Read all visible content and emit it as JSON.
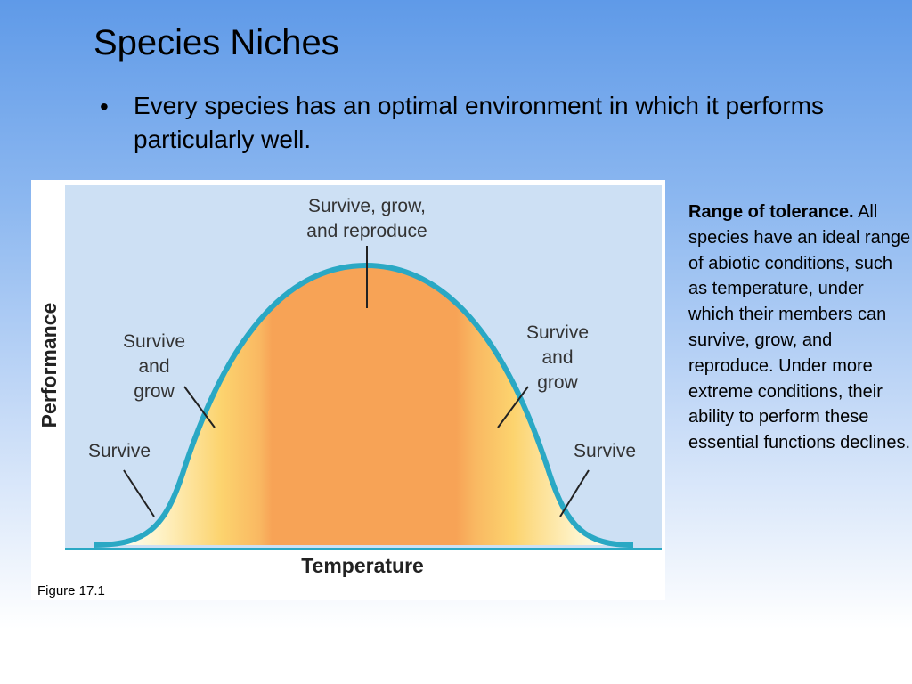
{
  "slide": {
    "title": "Species Niches",
    "bullet_symbol": "•",
    "bullet_text": "Every species has an optimal environment in which it performs particularly well."
  },
  "figure": {
    "y_axis_label": "Performance",
    "x_axis_label": "Temperature",
    "label_top_line1": "Survive, grow,",
    "label_top_line2": "and reproduce",
    "label_left_grow_line1": "Survive",
    "label_left_grow_line2": "and",
    "label_left_grow_line3": "grow",
    "label_right_grow_line1": "Survive",
    "label_right_grow_line2": "and",
    "label_right_grow_line3": "grow",
    "label_left_survive": "Survive",
    "label_right_survive": "Survive",
    "figure_number": "Figure 17.1",
    "colors": {
      "panel": "#cde0f4",
      "curve": "#2aa8c4",
      "optimal": "#f7a356",
      "grow_zone": "#fcd36e"
    }
  },
  "caption": {
    "heading": "Range of tolerance.",
    "body": "All species have an ideal range of abiotic conditions, such as temperature, under which their members can survive, grow, and reproduce. Under more extreme conditions, their ability to perform these essential functions declines."
  }
}
